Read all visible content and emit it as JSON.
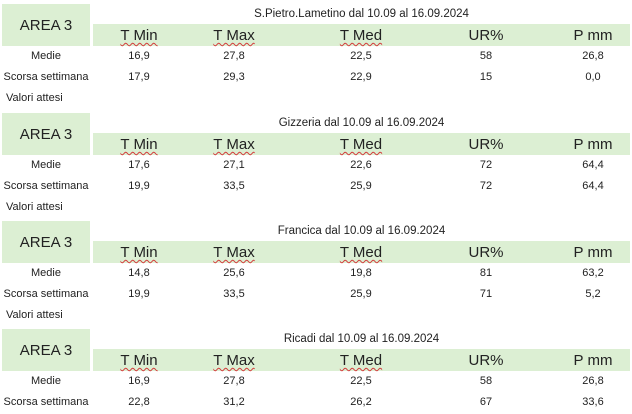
{
  "columns": [
    "T Min",
    "T Max",
    "T Med",
    "UR%",
    "P mm"
  ],
  "row_labels": {
    "medie": "Medie",
    "scorsa": "Scorsa settimana",
    "attesi": "Valori attesi"
  },
  "blocks": [
    {
      "area": "AREA 3",
      "title": "S.Pietro.Lametino dal 10.09 al 16.09.2024",
      "medie": [
        "16,9",
        "27,8",
        "22,5",
        "58",
        "26,8"
      ],
      "scorsa": [
        "17,9",
        "29,3",
        "22,9",
        "15",
        "0,0"
      ]
    },
    {
      "area": "AREA 3",
      "title": "Gizzeria dal 10.09 al 16.09.2024",
      "medie": [
        "17,6",
        "27,1",
        "22,6",
        "72",
        "64,4"
      ],
      "scorsa": [
        "19,9",
        "33,5",
        "25,9",
        "72",
        "64,4"
      ]
    },
    {
      "area": "AREA 3",
      "title": "Francica dal 10.09 al 16.09.2024",
      "medie": [
        "14,8",
        "25,6",
        "19,8",
        "81",
        "63,2"
      ],
      "scorsa": [
        "19,9",
        "33,5",
        "25,9",
        "71",
        "5,2"
      ]
    },
    {
      "area": "AREA 3",
      "title": "Ricadi  dal 10.09 al 16.09.2024",
      "medie": [
        "16,9",
        "27,8",
        "22,5",
        "58",
        "26,8"
      ],
      "scorsa": [
        "22,8",
        "31,2",
        "26,2",
        "67",
        "33,6"
      ]
    }
  ]
}
